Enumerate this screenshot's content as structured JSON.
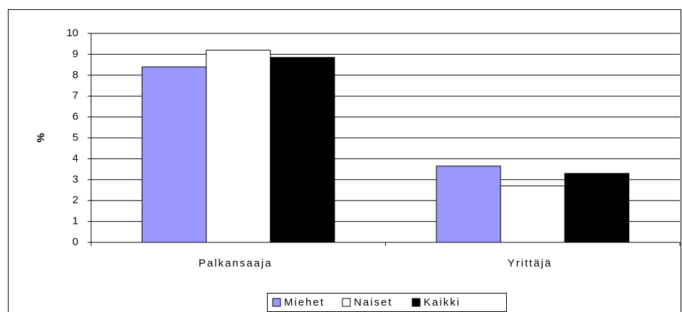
{
  "chart_data": {
    "type": "bar",
    "ylabel": "%",
    "categories": [
      "Palkansaaja",
      "Yrittäjä"
    ],
    "series": [
      {
        "name": "Miehet",
        "color": "#9999ff",
        "values": [
          8.4,
          3.65
        ]
      },
      {
        "name": "Naiset",
        "color": "#ffffff",
        "values": [
          9.2,
          2.7
        ]
      },
      {
        "name": "Kaikki",
        "color": "#000000",
        "values": [
          8.85,
          3.3
        ]
      }
    ],
    "ylim": [
      0,
      10
    ],
    "yticks": [
      0,
      1,
      2,
      3,
      4,
      5,
      6,
      7,
      8,
      9,
      10
    ],
    "grid": true,
    "legend": "bottom"
  }
}
